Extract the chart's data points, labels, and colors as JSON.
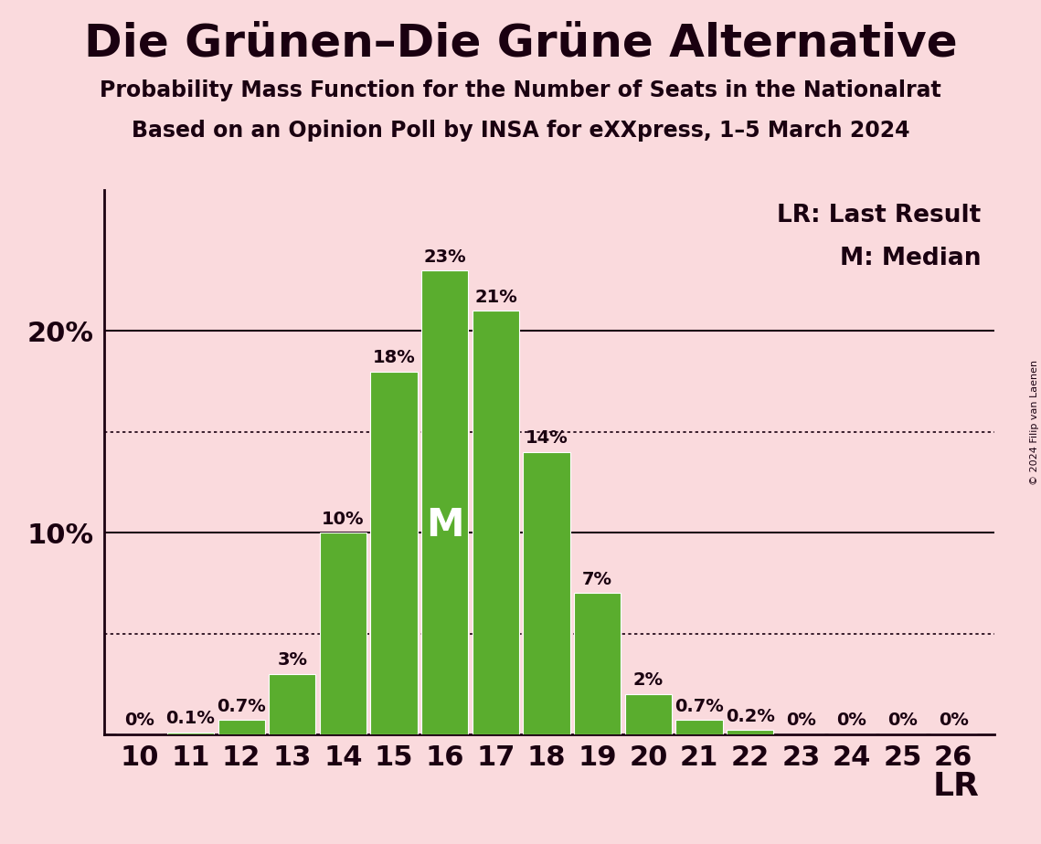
{
  "title": "Die Grünen–Die Grüne Alternative",
  "subtitle1": "Probability Mass Function for the Number of Seats in the Nationalrat",
  "subtitle2": "Based on an Opinion Poll by INSA for eXXpress, 1–5 March 2024",
  "seats": [
    10,
    11,
    12,
    13,
    14,
    15,
    16,
    17,
    18,
    19,
    20,
    21,
    22,
    23,
    24,
    25,
    26
  ],
  "probabilities": [
    0.0,
    0.1,
    0.7,
    3.0,
    10.0,
    18.0,
    23.0,
    21.0,
    14.0,
    7.0,
    2.0,
    0.7,
    0.2,
    0.0,
    0.0,
    0.0,
    0.0
  ],
  "bar_color": "#5aad2e",
  "background_color": "#fadadd",
  "text_color": "#1a0010",
  "median_seat": 16,
  "lr_seat": 26,
  "dotted_lines": [
    5,
    15
  ],
  "solid_lines": [
    10,
    20
  ],
  "copyright_text": "© 2024 Filip van Laenen",
  "legend_lr": "LR: Last Result",
  "legend_m": "M: Median",
  "lr_label": "LR",
  "title_fontsize": 36,
  "subtitle_fontsize": 17,
  "tick_fontsize": 22,
  "label_fontsize": 14,
  "legend_fontsize": 19,
  "lr_fontsize": 26,
  "median_fontsize": 30
}
